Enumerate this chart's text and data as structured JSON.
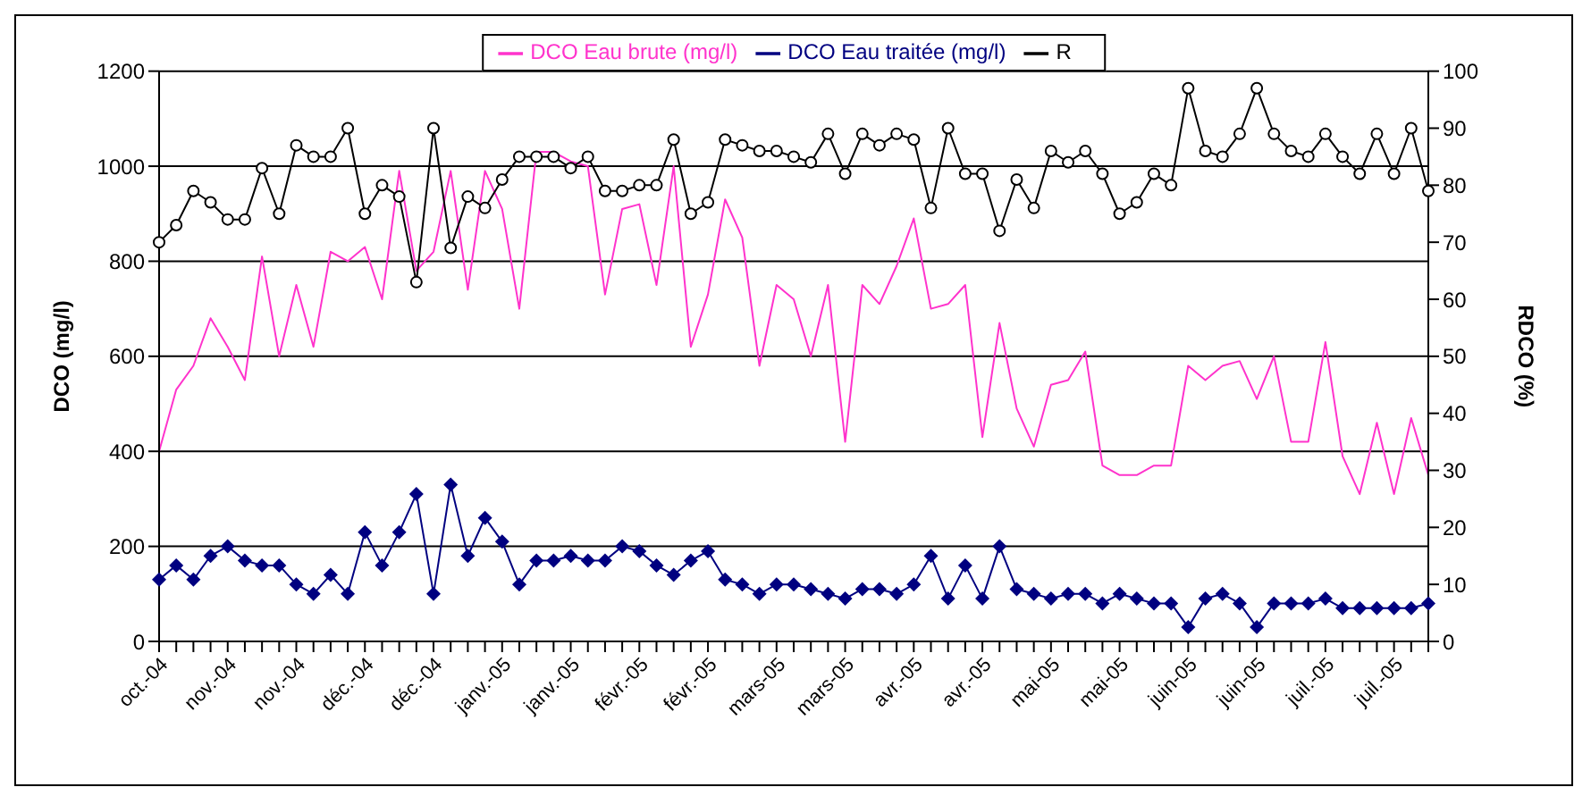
{
  "chart_data": {
    "type": "line",
    "categories": [
      "oct.-04",
      null,
      null,
      null,
      "nov.-04",
      null,
      null,
      null,
      "nov.-04",
      null,
      null,
      null,
      "déc.-04",
      null,
      null,
      null,
      "déc.-04",
      null,
      null,
      null,
      "janv.-05",
      null,
      null,
      null,
      "janv.-05",
      null,
      null,
      null,
      "févr.-05",
      null,
      null,
      null,
      "févr.-05",
      null,
      null,
      null,
      "mars-05",
      null,
      null,
      null,
      "mars-05",
      null,
      null,
      null,
      "avr.-05",
      null,
      null,
      null,
      "avr.-05",
      null,
      null,
      null,
      "mai-05",
      null,
      null,
      null,
      "mai-05",
      null,
      null,
      null,
      "juin-05",
      null,
      null,
      null,
      "juin-05",
      null,
      null,
      null,
      "juil.-05",
      null,
      null,
      null,
      "juil.-05",
      null,
      null
    ],
    "series": [
      {
        "name": "DCO Eau brute (mg/l)",
        "color": "#ff33cc",
        "marker": "none",
        "values": [
          400,
          530,
          580,
          680,
          620,
          550,
          810,
          600,
          750,
          620,
          820,
          800,
          830,
          720,
          990,
          780,
          820,
          990,
          740,
          990,
          910,
          700,
          1030,
          1030,
          1010,
          1000,
          730,
          910,
          920,
          750,
          1000,
          620,
          730,
          930,
          850,
          580,
          750,
          720,
          600,
          750,
          420,
          750,
          710,
          790,
          890,
          700,
          710,
          750,
          430,
          670,
          490,
          410,
          540,
          550,
          610,
          370,
          350,
          350,
          370,
          370,
          580,
          550,
          580,
          590,
          510,
          600,
          420,
          420,
          630,
          390,
          310,
          460,
          310,
          470,
          350
        ]
      },
      {
        "name": "DCO Eau traitée (mg/l)",
        "color": "#000080",
        "marker": "diamond",
        "values": [
          130,
          160,
          130,
          180,
          200,
          170,
          160,
          160,
          120,
          100,
          140,
          100,
          230,
          160,
          230,
          310,
          100,
          330,
          180,
          260,
          210,
          120,
          170,
          170,
          180,
          170,
          170,
          200,
          190,
          160,
          140,
          170,
          190,
          130,
          120,
          100,
          120,
          120,
          110,
          100,
          90,
          110,
          110,
          100,
          120,
          180,
          90,
          160,
          90,
          200,
          110,
          100,
          90,
          100,
          100,
          80,
          100,
          90,
          80,
          80,
          30,
          90,
          100,
          80,
          30,
          80,
          80,
          80,
          90,
          70,
          70,
          70,
          70,
          70,
          80
        ]
      },
      {
        "name": "R",
        "color": "#000000",
        "marker": "circle",
        "axis": "y2",
        "values": [
          70,
          73,
          79,
          77,
          74,
          74,
          83,
          75,
          87,
          85,
          85,
          90,
          75,
          80,
          78,
          63,
          90,
          69,
          78,
          76,
          81,
          85,
          85,
          85,
          83,
          85,
          79,
          79,
          80,
          80,
          88,
          75,
          77,
          88,
          87,
          86,
          86,
          85,
          84,
          89,
          82,
          89,
          87,
          89,
          88,
          76,
          90,
          82,
          82,
          72,
          81,
          76,
          86,
          84,
          86,
          82,
          75,
          77,
          82,
          80,
          97,
          86,
          85,
          89,
          97,
          89,
          86,
          85,
          89,
          85,
          82,
          89,
          82,
          90,
          79
        ]
      }
    ],
    "ylabel": "DCO (mg/l)",
    "y2label": "RDCO (%)",
    "ylim": [
      0,
      1200
    ],
    "yticks": [
      0,
      200,
      400,
      600,
      800,
      1000,
      1200
    ],
    "y2lim": [
      0,
      100
    ],
    "y2ticks": [
      0,
      10,
      20,
      30,
      40,
      50,
      60,
      70,
      80,
      90,
      100
    ],
    "grid": "y",
    "legend": "top"
  }
}
